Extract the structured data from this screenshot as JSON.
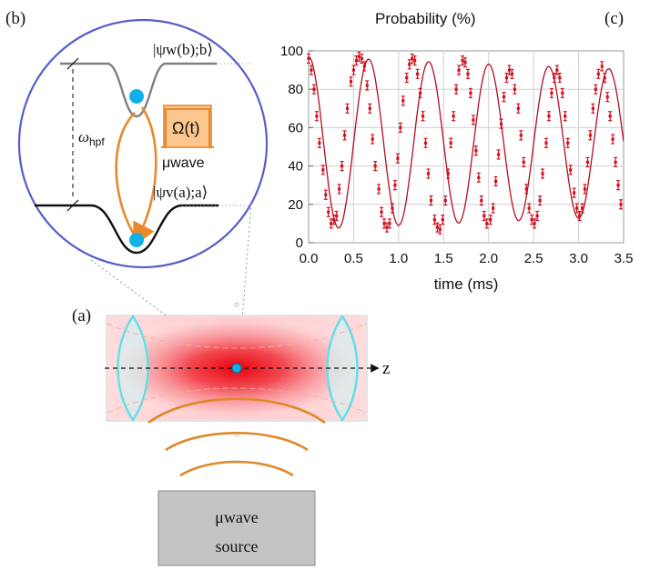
{
  "panel_labels": {
    "a": "(a)",
    "b": "(b)",
    "c": "(c)"
  },
  "inset": {
    "upper_state": "|ψw(b);b⟩",
    "lower_state": "|ψv(a);a⟩",
    "hpf_symbol": "ω",
    "hpf_sub": "hpf",
    "pulse_label": "Ω(t)",
    "mw_label": "μwave"
  },
  "setup": {
    "axis_label": "z",
    "source_line1": "μwave",
    "source_line2": "source"
  },
  "chart_data": {
    "type": "scatter",
    "title": "Probability (%)",
    "xlabel": "time (ms)",
    "ylabel": "",
    "xlim": [
      0,
      3.5
    ],
    "ylim": [
      0,
      100
    ],
    "x_ticks": [
      "0.0",
      "0.5",
      "1.0",
      "1.5",
      "2.0",
      "2.5",
      "3.0",
      "3.5"
    ],
    "y_ticks": [
      "0",
      "20",
      "40",
      "60",
      "80",
      "100"
    ],
    "fit": {
      "name": "",
      "amplitude": 45,
      "offset": 52,
      "period_ms": 0.667,
      "phase": 1.571,
      "decay_ms": 22
    },
    "series": [
      {
        "name": "",
        "x": [
          0.0,
          0.03,
          0.06,
          0.09,
          0.12,
          0.16,
          0.19,
          0.22,
          0.25,
          0.28,
          0.31,
          0.34,
          0.37,
          0.4,
          0.43,
          0.47,
          0.5,
          0.53,
          0.56,
          0.59,
          0.62,
          0.65,
          0.68,
          0.71,
          0.74,
          0.78,
          0.81,
          0.84,
          0.87,
          0.9,
          0.93,
          0.96,
          0.99,
          1.02,
          1.05,
          1.09,
          1.12,
          1.15,
          1.18,
          1.21,
          1.24,
          1.27,
          1.3,
          1.33,
          1.36,
          1.4,
          1.43,
          1.46,
          1.49,
          1.52,
          1.55,
          1.58,
          1.61,
          1.64,
          1.67,
          1.71,
          1.74,
          1.77,
          1.8,
          1.83,
          1.86,
          1.89,
          1.92,
          1.95,
          1.98,
          2.02,
          2.05,
          2.08,
          2.11,
          2.14,
          2.17,
          2.2,
          2.23,
          2.26,
          2.29,
          2.33,
          2.36,
          2.39,
          2.42,
          2.45,
          2.48,
          2.51,
          2.54,
          2.57,
          2.6,
          2.64,
          2.67,
          2.7,
          2.73,
          2.76,
          2.79,
          2.82,
          2.85,
          2.88,
          2.91,
          2.95,
          2.98,
          3.01,
          3.04,
          3.07,
          3.1,
          3.13,
          3.16,
          3.19,
          3.22,
          3.26,
          3.29,
          3.32,
          3.35,
          3.38,
          3.41,
          3.44,
          3.47
        ],
        "y": [
          96,
          90,
          80,
          66,
          52,
          38,
          25,
          16,
          10,
          12,
          14,
          28,
          40,
          56,
          70,
          84,
          90,
          95,
          97,
          96,
          92,
          82,
          70,
          54,
          40,
          28,
          16,
          10,
          8,
          10,
          18,
          30,
          44,
          60,
          74,
          86,
          93,
          96,
          95,
          88,
          78,
          66,
          52,
          36,
          22,
          12,
          8,
          7,
          12,
          22,
          36,
          52,
          66,
          80,
          90,
          95,
          94,
          88,
          78,
          64,
          48,
          34,
          22,
          14,
          10,
          12,
          18,
          32,
          46,
          62,
          76,
          86,
          90,
          88,
          80,
          70,
          56,
          42,
          28,
          18,
          12,
          10,
          14,
          22,
          36,
          52,
          66,
          78,
          86,
          90,
          86,
          78,
          66,
          52,
          38,
          26,
          18,
          14,
          18,
          28,
          42,
          56,
          70,
          80,
          88,
          92,
          86,
          76,
          66,
          54,
          42,
          30,
          20
        ]
      }
    ]
  }
}
